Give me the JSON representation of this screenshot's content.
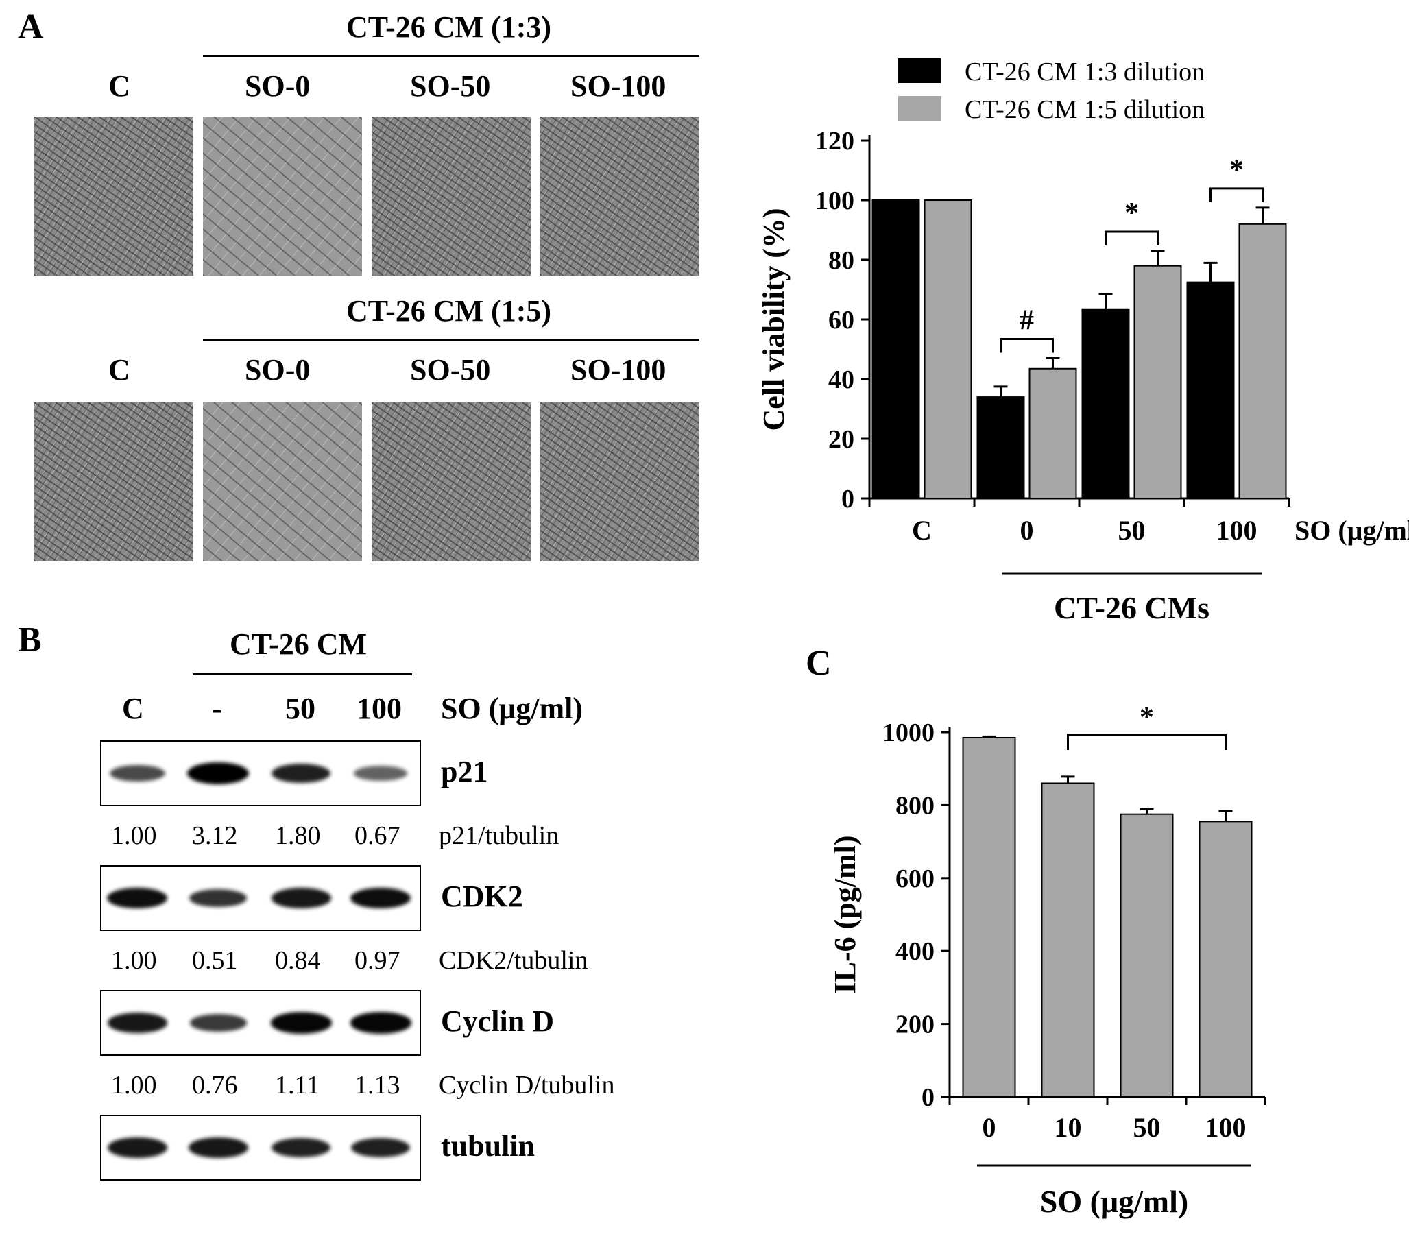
{
  "panel_a": {
    "letter": "A",
    "row1": {
      "header": "CT-26 CM (1:3)",
      "labels": [
        "C",
        "SO-0",
        "SO-50",
        "SO-100"
      ]
    },
    "row2": {
      "header": "CT-26 CM (1:5)",
      "labels": [
        "C",
        "SO-0",
        "SO-50",
        "SO-100"
      ]
    }
  },
  "panel_b": {
    "letter": "B",
    "header": "CT-26 CM",
    "lanes": [
      "C",
      "-",
      "50",
      "100"
    ],
    "so_label": "SO (μg/ml)",
    "blots": [
      {
        "name": "p21",
        "intensity": [
          0.55,
          1.0,
          0.8,
          0.4
        ],
        "ratio_label": "p21/tubulin",
        "ratios": [
          "1.00",
          "3.12",
          "1.80",
          "0.67"
        ]
      },
      {
        "name": "CDK2",
        "intensity": [
          0.9,
          0.7,
          0.85,
          0.9
        ],
        "ratio_label": "CDK2/tubulin",
        "ratios": [
          "1.00",
          "0.51",
          "0.84",
          "0.97"
        ]
      },
      {
        "name": "Cyclin D",
        "intensity": [
          0.85,
          0.65,
          0.95,
          0.95
        ],
        "ratio_label": "Cyclin D/tubulin",
        "ratios": [
          "1.00",
          "0.76",
          "1.11",
          "1.13"
        ]
      },
      {
        "name": "tubulin",
        "intensity": [
          0.85,
          0.85,
          0.8,
          0.8
        ]
      }
    ]
  },
  "chart_data": [
    {
      "type": "bar",
      "categories": [
        "C",
        "0",
        "50",
        "100"
      ],
      "series": [
        {
          "name": "CT-26 CM 1:3 dilution",
          "values": [
            100,
            34,
            63.5,
            72.5
          ],
          "errors": [
            0,
            3.5,
            5,
            6.5
          ],
          "color": "#000000"
        },
        {
          "name": "CT-26 CM 1:5 dilution",
          "values": [
            100,
            43.5,
            78,
            92
          ],
          "errors": [
            0,
            3.5,
            5,
            5.5
          ],
          "color": "#a6a6a6"
        }
      ],
      "ylabel": "Cell viability (%)",
      "ylim": [
        0,
        120
      ],
      "yticks": [
        0,
        20,
        40,
        60,
        80,
        100,
        120
      ],
      "x_unit_label": "SO (μg/ml)",
      "group_label": "CT-26 CMs",
      "annotations": [
        {
          "category": "0",
          "text": "#"
        },
        {
          "category": "50",
          "text": "*"
        },
        {
          "category": "100",
          "text": "*"
        }
      ],
      "legend": "top"
    },
    {
      "type": "bar",
      "panel_letter": "C",
      "categories": [
        "0",
        "10",
        "50",
        "100"
      ],
      "values": [
        985,
        860,
        775,
        755
      ],
      "errors": [
        3,
        18,
        14,
        28
      ],
      "color": "#a6a6a6",
      "ylabel": "IL-6 (pg/ml)",
      "ylim": [
        0,
        1000
      ],
      "yticks": [
        0,
        200,
        400,
        600,
        800,
        1000
      ],
      "xlabel": "SO (μg/ml)",
      "annotations": [
        {
          "from": "10",
          "to": "100",
          "text": "*"
        }
      ]
    }
  ]
}
